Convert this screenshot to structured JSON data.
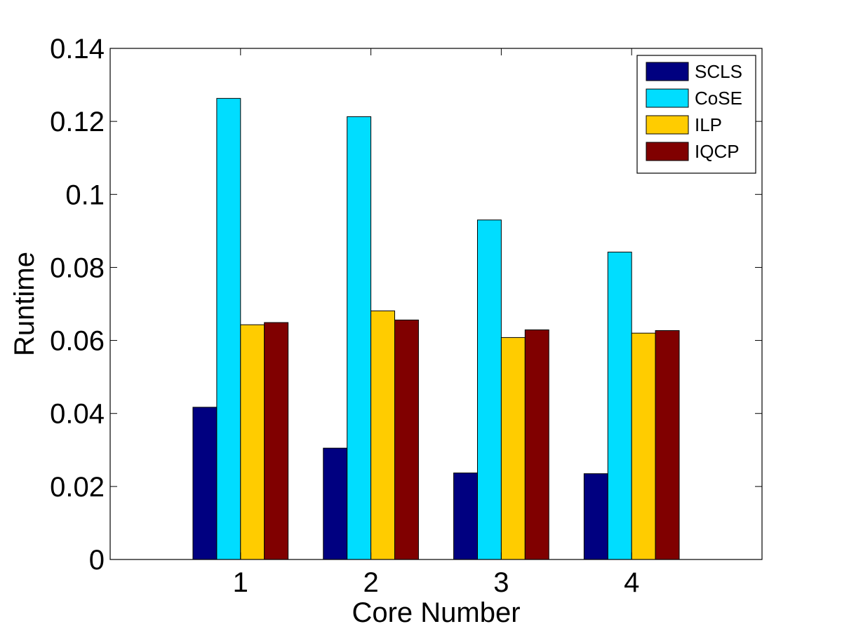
{
  "chart_data": {
    "type": "bar",
    "title": "",
    "xlabel": "Core Number",
    "ylabel": "Runtime",
    "categories": [
      "1",
      "2",
      "3",
      "4"
    ],
    "ylim": [
      0,
      0.14
    ],
    "yticks": [
      0,
      0.02,
      0.04,
      0.06,
      0.08,
      0.1,
      0.12,
      0.14
    ],
    "ytick_labels": [
      "0",
      "0.02",
      "0.04",
      "0.06",
      "0.08",
      "0.1",
      "0.12",
      "0.14"
    ],
    "grid": false,
    "legend_position": "top-right",
    "series": [
      {
        "name": "SCLS",
        "color": "#000080",
        "values": [
          0.0417,
          0.0305,
          0.0237,
          0.0235
        ]
      },
      {
        "name": "CoSE",
        "color": "#00DDFF",
        "values": [
          0.1263,
          0.1213,
          0.093,
          0.0842
        ]
      },
      {
        "name": "ILP",
        "color": "#FFCC00",
        "values": [
          0.0643,
          0.0681,
          0.0608,
          0.062
        ]
      },
      {
        "name": "IQCP",
        "color": "#800000",
        "values": [
          0.0649,
          0.0656,
          0.0629,
          0.0627
        ]
      }
    ]
  }
}
